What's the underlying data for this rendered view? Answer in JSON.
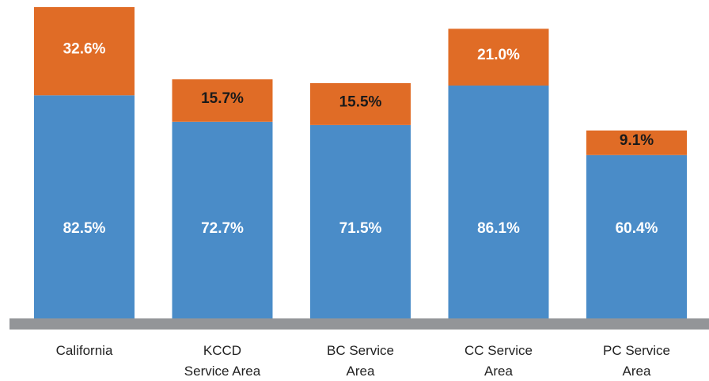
{
  "chart_data": {
    "type": "stacked_bar",
    "categories": [
      "California",
      "KCCD\nService Area",
      "BC Service\nArea",
      "CC Service\nArea",
      "PC Service\nArea"
    ],
    "series": [
      {
        "color": "#4a8cc8",
        "values": [
          82.5,
          72.7,
          71.5,
          86.1,
          60.4
        ],
        "value_labels": [
          "82.5%",
          "72.7%",
          "71.5%",
          "86.1%",
          "60.4%"
        ],
        "label_colors": [
          "#ffffff",
          "#ffffff",
          "#ffffff",
          "#ffffff",
          "#ffffff"
        ]
      },
      {
        "color": "#e06c26",
        "values": [
          32.6,
          15.7,
          15.5,
          21.0,
          9.1
        ],
        "value_labels": [
          "32.6%",
          "15.7%",
          "15.5%",
          "21.0%",
          "9.1%"
        ],
        "label_colors": [
          "#ffffff",
          "#1a1a1a",
          "#1a1a1a",
          "#ffffff",
          "#1a1a1a"
        ]
      }
    ],
    "baseline_color": "#939598"
  }
}
